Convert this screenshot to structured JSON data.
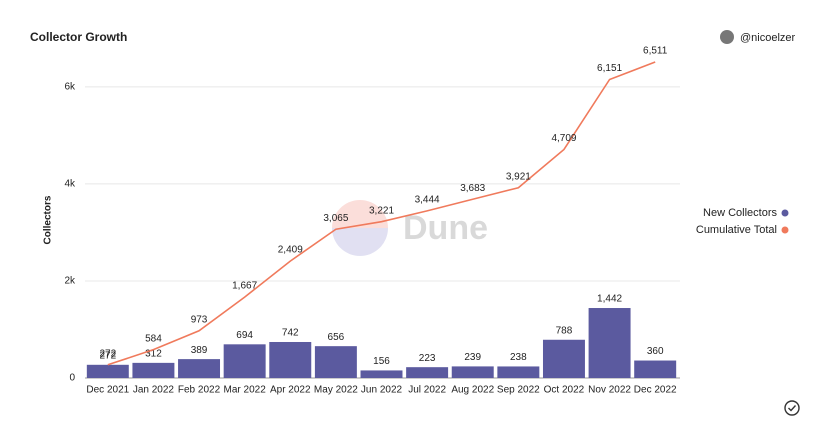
{
  "chart_data": {
    "type": "bar",
    "title": "Collector Growth",
    "author": "@nicoelzer",
    "watermark": "Dune",
    "y_label": "Collectors",
    "categories": [
      "Dec 2021",
      "Jan 2022",
      "Feb 2022",
      "Mar 2022",
      "Apr 2022",
      "May 2022",
      "Jun 2022",
      "Jul 2022",
      "Aug 2022",
      "Sep 2022",
      "Oct 2022",
      "Nov 2022",
      "Dec 2022"
    ],
    "series": [
      {
        "name": "New Collectors",
        "type": "bar",
        "color": "#5b5a9f",
        "values": [
          272,
          312,
          389,
          694,
          742,
          656,
          156,
          223,
          239,
          238,
          788,
          1442,
          360
        ],
        "value_labels": [
          "272",
          "312",
          "389",
          "694",
          "742",
          "656",
          "156",
          "223",
          "239",
          "238",
          "788",
          "1,442",
          "360"
        ]
      },
      {
        "name": "Cumulative Total",
        "type": "line",
        "color": "#f07a5c",
        "values": [
          272,
          584,
          973,
          1667,
          2409,
          3065,
          3221,
          3444,
          3683,
          3921,
          4709,
          6151,
          6511
        ],
        "value_labels": [
          "272",
          "584",
          "973",
          "1,667",
          "2,409",
          "3,065",
          "3,221",
          "3,444",
          "3,683",
          "3,921",
          "4,709",
          "6,151",
          "6,511"
        ]
      }
    ],
    "ylim": [
      0,
      6800
    ],
    "yticks": [
      0,
      {
        "value": 2000,
        "label": "2k"
      },
      {
        "value": 4000,
        "label": "4k"
      },
      {
        "value": 6000,
        "label": "6k"
      }
    ],
    "grid": true,
    "legend": "right"
  }
}
